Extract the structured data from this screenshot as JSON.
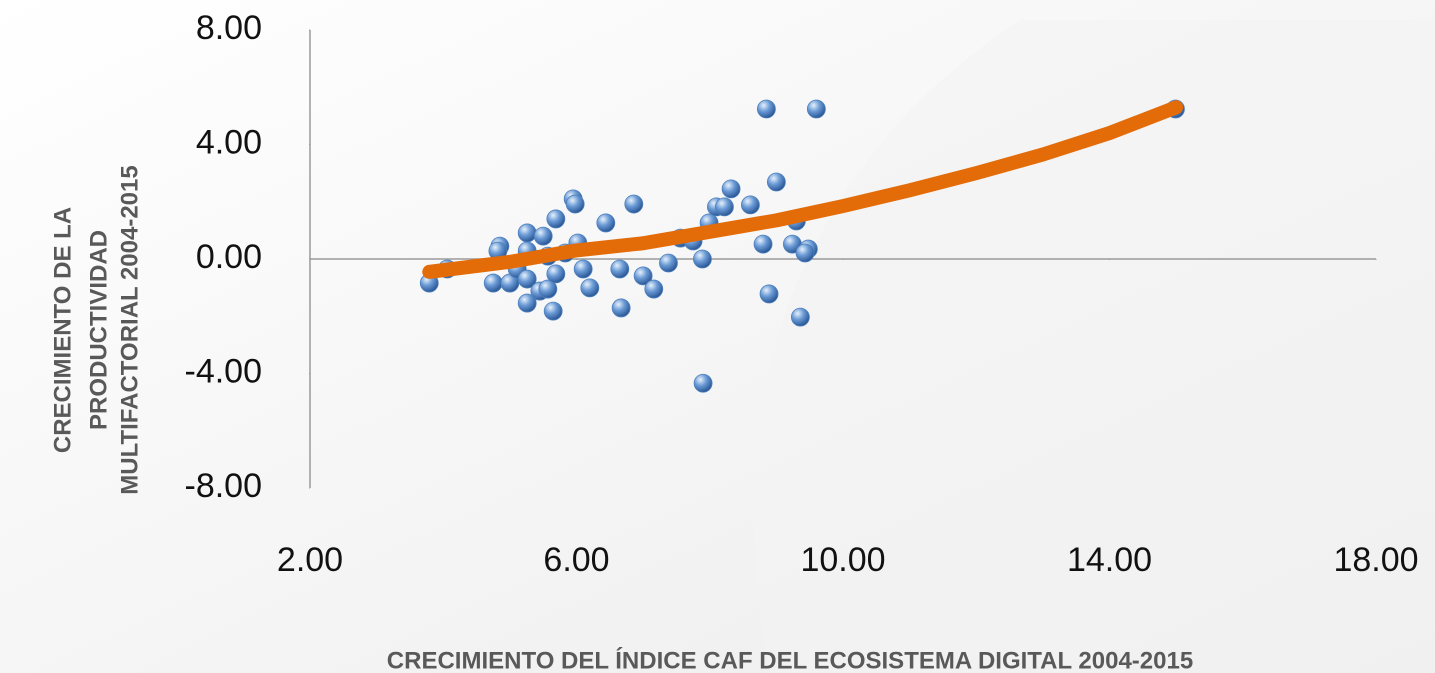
{
  "chart_data": {
    "type": "scatter",
    "x_label": "CRECIMIENTO DEL ÍNDICE CAF DEL ECOSISTEMA DIGITAL 2004-2015",
    "y_label": [
      "CRECIMIENTO DE LA",
      "PRODUCTIVIDAD",
      "MULTIFACTORIAL 2004-2015"
    ],
    "xlim": [
      2,
      18
    ],
    "xticks": [
      {
        "value": 2,
        "label": "2.00"
      },
      {
        "value": 6,
        "label": "6.00"
      },
      {
        "value": 10,
        "label": "10.00"
      },
      {
        "value": 14,
        "label": "14.00"
      },
      {
        "value": 18,
        "label": "18.00"
      }
    ],
    "ylim": [
      -8,
      8
    ],
    "yticks": [
      {
        "value": -8,
        "label": "-8.00"
      },
      {
        "value": -4,
        "label": "-4.00"
      },
      {
        "value": 0,
        "label": "0.00"
      },
      {
        "value": 4,
        "label": "4.00"
      },
      {
        "value": 8,
        "label": "8.00"
      }
    ],
    "series": [
      {
        "color": "#4f81bd",
        "x": [
          3.79,
          4.06,
          4.75,
          4.85,
          4.82,
          5.0,
          5.11,
          5.26,
          5.26,
          5.26,
          5.26,
          5.5,
          5.45,
          5.57,
          5.57,
          5.69,
          5.65,
          5.69,
          5.83,
          5.95,
          5.98,
          6.02,
          6.1,
          6.2,
          6.44,
          6.65,
          6.67,
          6.86,
          7.0,
          7.16,
          7.38,
          7.56,
          7.75,
          7.89,
          7.9,
          7.99,
          8.1,
          8.22,
          8.32,
          8.61,
          8.8,
          8.85,
          8.89,
          9.0,
          9.24,
          9.3,
          9.36,
          9.48,
          9.43,
          9.6,
          14.99
        ],
        "values": [
          -0.84,
          -0.35,
          -0.84,
          0.45,
          0.28,
          -0.84,
          -0.35,
          0.91,
          0.28,
          -1.54,
          -0.7,
          0.8,
          -1.12,
          -1.05,
          0.1,
          1.4,
          -1.82,
          -0.52,
          0.21,
          2.1,
          1.92,
          0.56,
          -0.35,
          -1.01,
          1.26,
          -0.35,
          -1.71,
          1.92,
          -0.59,
          -1.05,
          -0.14,
          0.73,
          0.63,
          0.0,
          -4.34,
          1.26,
          1.82,
          1.82,
          2.45,
          1.89,
          0.52,
          5.24,
          -1.22,
          2.69,
          0.52,
          1.33,
          -2.03,
          0.35,
          0.21,
          5.24,
          5.24
        ]
      },
      {
        "type": "line",
        "color": "#e36c09",
        "x": [
          3.79,
          5,
          6,
          7,
          8,
          9,
          10,
          11,
          12,
          13,
          14,
          15
        ],
        "values": [
          -0.45,
          -0.1,
          0.3,
          0.55,
          0.95,
          1.35,
          1.85,
          2.4,
          3.0,
          3.65,
          4.4,
          5.3
        ]
      }
    ]
  }
}
